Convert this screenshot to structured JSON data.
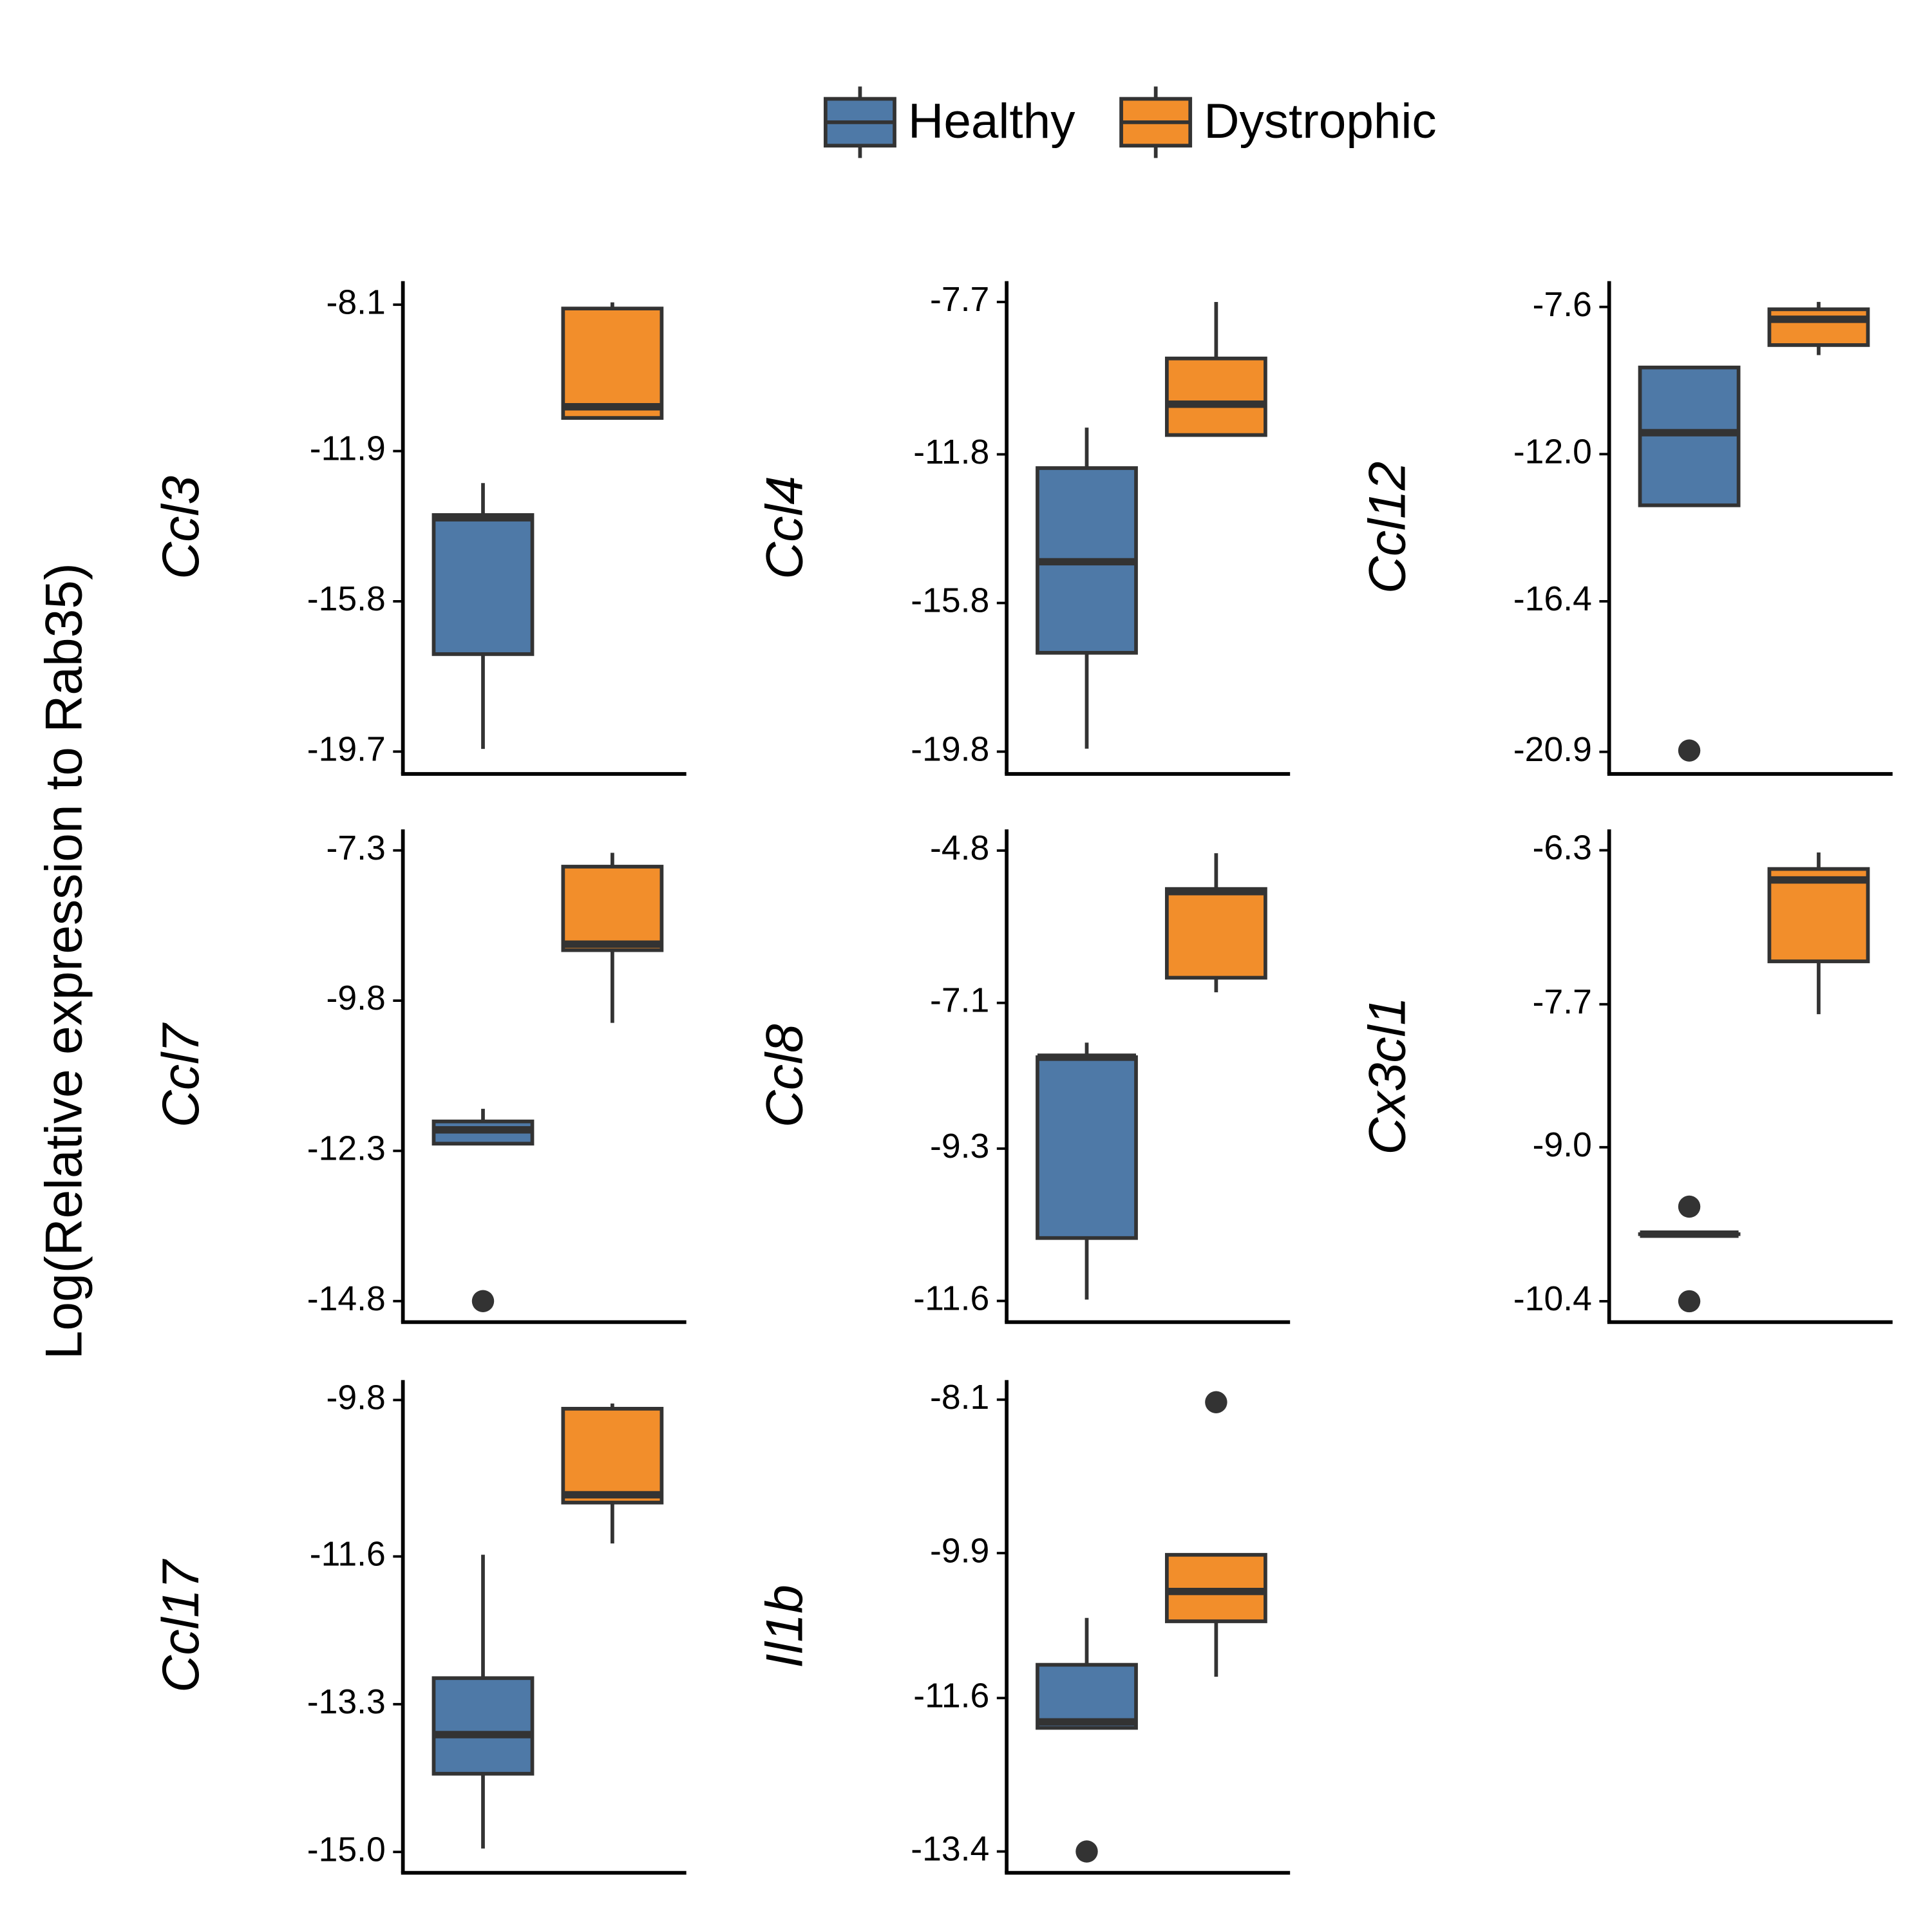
{
  "ylabel": "Log(Relative expression to Rab35)",
  "legend": [
    {
      "name": "Healthy",
      "color": "#4e79a7"
    },
    {
      "name": "Dystrophic",
      "color": "#f28e2b"
    }
  ],
  "chart_data": [
    {
      "type": "box",
      "gene": "Ccl3",
      "ylim": [
        -20.28,
        -7.49
      ],
      "yticks": [
        -8.1,
        -11.9,
        -15.8,
        -19.7
      ],
      "boxes": [
        {
          "min": -19.63,
          "q1": -17.17,
          "median": -13.63,
          "q3": -13.56,
          "max": -12.73,
          "outliers": []
        },
        {
          "min": -11.04,
          "q1": -11.04,
          "median": -10.75,
          "q3": -8.2,
          "max": -8.04,
          "outliers": []
        }
      ]
    },
    {
      "type": "box",
      "gene": "Ccl4",
      "ylim": [
        -20.4,
        -7.14
      ],
      "yticks": [
        -7.7,
        -11.8,
        -15.8,
        -19.8
      ],
      "boxes": [
        {
          "min": -19.72,
          "q1": -17.14,
          "median": -14.69,
          "q3": -12.17,
          "max": -11.08,
          "outliers": []
        },
        {
          "min": -11.28,
          "q1": -11.28,
          "median": -10.45,
          "q3": -9.22,
          "max": -7.7,
          "outliers": []
        }
      ]
    },
    {
      "type": "box",
      "gene": "Ccl12",
      "ylim": [
        -21.56,
        -6.83
      ],
      "yticks": [
        -7.6,
        {
          "value": -12,
          "label": "-12.0"
        },
        -16.4,
        -20.9
      ],
      "boxes": [
        {
          "min": -13.53,
          "q1": -13.53,
          "median": -11.36,
          "q3": -9.41,
          "max": -9.37,
          "outliers": [
            -20.86
          ]
        },
        {
          "min": -9.04,
          "q1": -8.74,
          "median": -7.97,
          "q3": -7.67,
          "max": -7.45,
          "outliers": []
        }
      ]
    },
    {
      "type": "box",
      "gene": "Ccl7",
      "ylim": [
        -15.15,
        -6.95
      ],
      "yticks": [
        -7.3,
        -9.8,
        -12.3,
        -14.8
      ],
      "boxes": [
        {
          "min": -12.18,
          "q1": -12.18,
          "median": -11.95,
          "q3": -11.81,
          "max": -11.6,
          "outliers": [
            -14.8
          ]
        },
        {
          "min": -10.17,
          "q1": -8.96,
          "median": -8.86,
          "q3": -7.57,
          "max": -7.34,
          "outliers": []
        }
      ]
    },
    {
      "type": "box",
      "gene": "Ccl8",
      "ylim": [
        -11.92,
        -4.48
      ],
      "yticks": [
        -4.8,
        -7.1,
        -9.3,
        -11.6
      ],
      "boxes": [
        {
          "min": -11.58,
          "q1": -10.65,
          "median": -7.92,
          "q3": -7.92,
          "max": -7.7,
          "outliers": []
        },
        {
          "min": -6.94,
          "q1": -6.72,
          "median": -5.42,
          "q3": -5.38,
          "max": -4.84,
          "outliers": []
        }
      ]
    },
    {
      "type": "box",
      "gene": "Cx3cl1",
      "ylim": [
        -10.59,
        -6.11
      ],
      "yticks": [
        -6.3,
        -7.7,
        {
          "value": -9,
          "label": "-9.0"
        },
        -10.4
      ],
      "boxes": [
        {
          "min": -9.79,
          "q1": -9.79,
          "median": -9.79,
          "q3": -9.79,
          "max": -9.79,
          "outliers": [
            -9.54,
            -10.4
          ]
        },
        {
          "min": -7.79,
          "q1": -7.31,
          "median": -6.57,
          "q3": -6.47,
          "max": -6.32,
          "outliers": []
        }
      ]
    },
    {
      "type": "box",
      "gene": "Ccl17",
      "ylim": [
        -15.24,
        -9.57
      ],
      "yticks": [
        -9.8,
        -11.6,
        -13.3,
        {
          "value": -15,
          "label": "-15.0"
        }
      ],
      "boxes": [
        {
          "min": -14.96,
          "q1": -14.1,
          "median": -13.65,
          "q3": -13.0,
          "max": -11.58,
          "outliers": []
        },
        {
          "min": -11.45,
          "q1": -10.98,
          "median": -10.89,
          "q3": -9.9,
          "max": -9.84,
          "outliers": []
        }
      ]
    },
    {
      "type": "box",
      "gene": "Il1b",
      "ylim": [
        -13.65,
        -7.87
      ],
      "yticks": [
        -8.1,
        -9.9,
        -11.6,
        -13.4
      ],
      "boxes": [
        {
          "min": -11.95,
          "q1": -11.95,
          "median": -11.88,
          "q3": -11.21,
          "max": -10.66,
          "outliers": [
            -13.4
          ]
        },
        {
          "min": -11.35,
          "q1": -10.7,
          "median": -10.35,
          "q3": -9.92,
          "max": -9.92,
          "outliers": [
            -8.13
          ]
        }
      ]
    }
  ]
}
